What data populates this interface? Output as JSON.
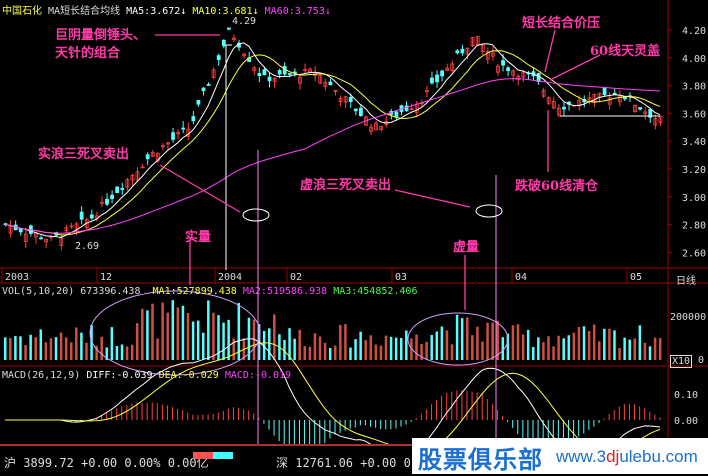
{
  "header": {
    "stock": "中国石化",
    "indicator": "MA短长结合均线",
    "ma5": "MA5:3.672",
    "ma10": "MA10:3.681",
    "ma60": "MA60:3.753"
  },
  "vol_header": {
    "label": "VOL(5,10,20) 673396.438",
    "ma1": "MA1:527899.438",
    "ma2": "MA2:519586.938",
    "ma3": "MA3:454852.406"
  },
  "macd_header": {
    "label": "MACD(26,12,9)",
    "diff": "DIFF:-0.039",
    "dea": "DEA:-0.029",
    "macd": "MACD:-0.019"
  },
  "annotations": {
    "a1": "巨阴量倒锤头、",
    "a2": "天针的组合",
    "a3": "实浪三死叉卖出",
    "a4": "虚浪三死叉卖出",
    "a5": "实量",
    "a6": "虚量",
    "a7": "短长结合价压",
    "a8": "60线天灵盖",
    "a9": "跌破60线清仓",
    "peak": "4.29",
    "low": "2.69"
  },
  "right_axis": {
    "period_label": "日线",
    "vol_tick": "200000",
    "vol_zero": "0",
    "vol_unit": "X10"
  },
  "status": {
    "sh": "沪 3899.72 +0.00 0.00% 0.00亿",
    "sz": "深 12761.06 +0.00 0.0"
  },
  "logo": {
    "cn": "股票俱乐部",
    "url_a": "www.3",
    "url_b": "dj",
    "url_c": "ulebu.com"
  },
  "colors": {
    "up": "#ff4040",
    "down": "#54ffff",
    "ma5": "#ffffff",
    "ma10": "#ffff40",
    "ma60": "#ff40ff",
    "grid": "#a00000",
    "annot": "#ff3aa8"
  },
  "chart_data": {
    "type": "candlestick",
    "x_ticks": [
      "2003",
      "12",
      "2004",
      "02",
      "03",
      "04",
      "05"
    ],
    "y_ticks": [
      "4.20",
      "4.00",
      "3.80",
      "3.60",
      "3.40",
      "3.20",
      "3.00",
      "2.80",
      "2.60"
    ],
    "ylim": [
      2.55,
      4.3
    ],
    "close_path": [
      [
        0,
        2.8
      ],
      [
        0.07,
        2.69
      ],
      [
        0.13,
        2.85
      ],
      [
        0.22,
        3.3
      ],
      [
        0.28,
        3.5
      ],
      [
        0.34,
        4.2
      ],
      [
        0.39,
        3.85
      ],
      [
        0.47,
        3.9
      ],
      [
        0.56,
        3.5
      ],
      [
        0.63,
        3.7
      ],
      [
        0.71,
        4.15
      ],
      [
        0.75,
        3.95
      ],
      [
        0.8,
        3.85
      ],
      [
        0.84,
        3.65
      ],
      [
        0.93,
        3.75
      ],
      [
        0.99,
        3.55
      ]
    ],
    "vol_ticks": [
      "200000",
      "0"
    ],
    "macd_ticks": [
      "0.10",
      "0.00"
    ]
  }
}
